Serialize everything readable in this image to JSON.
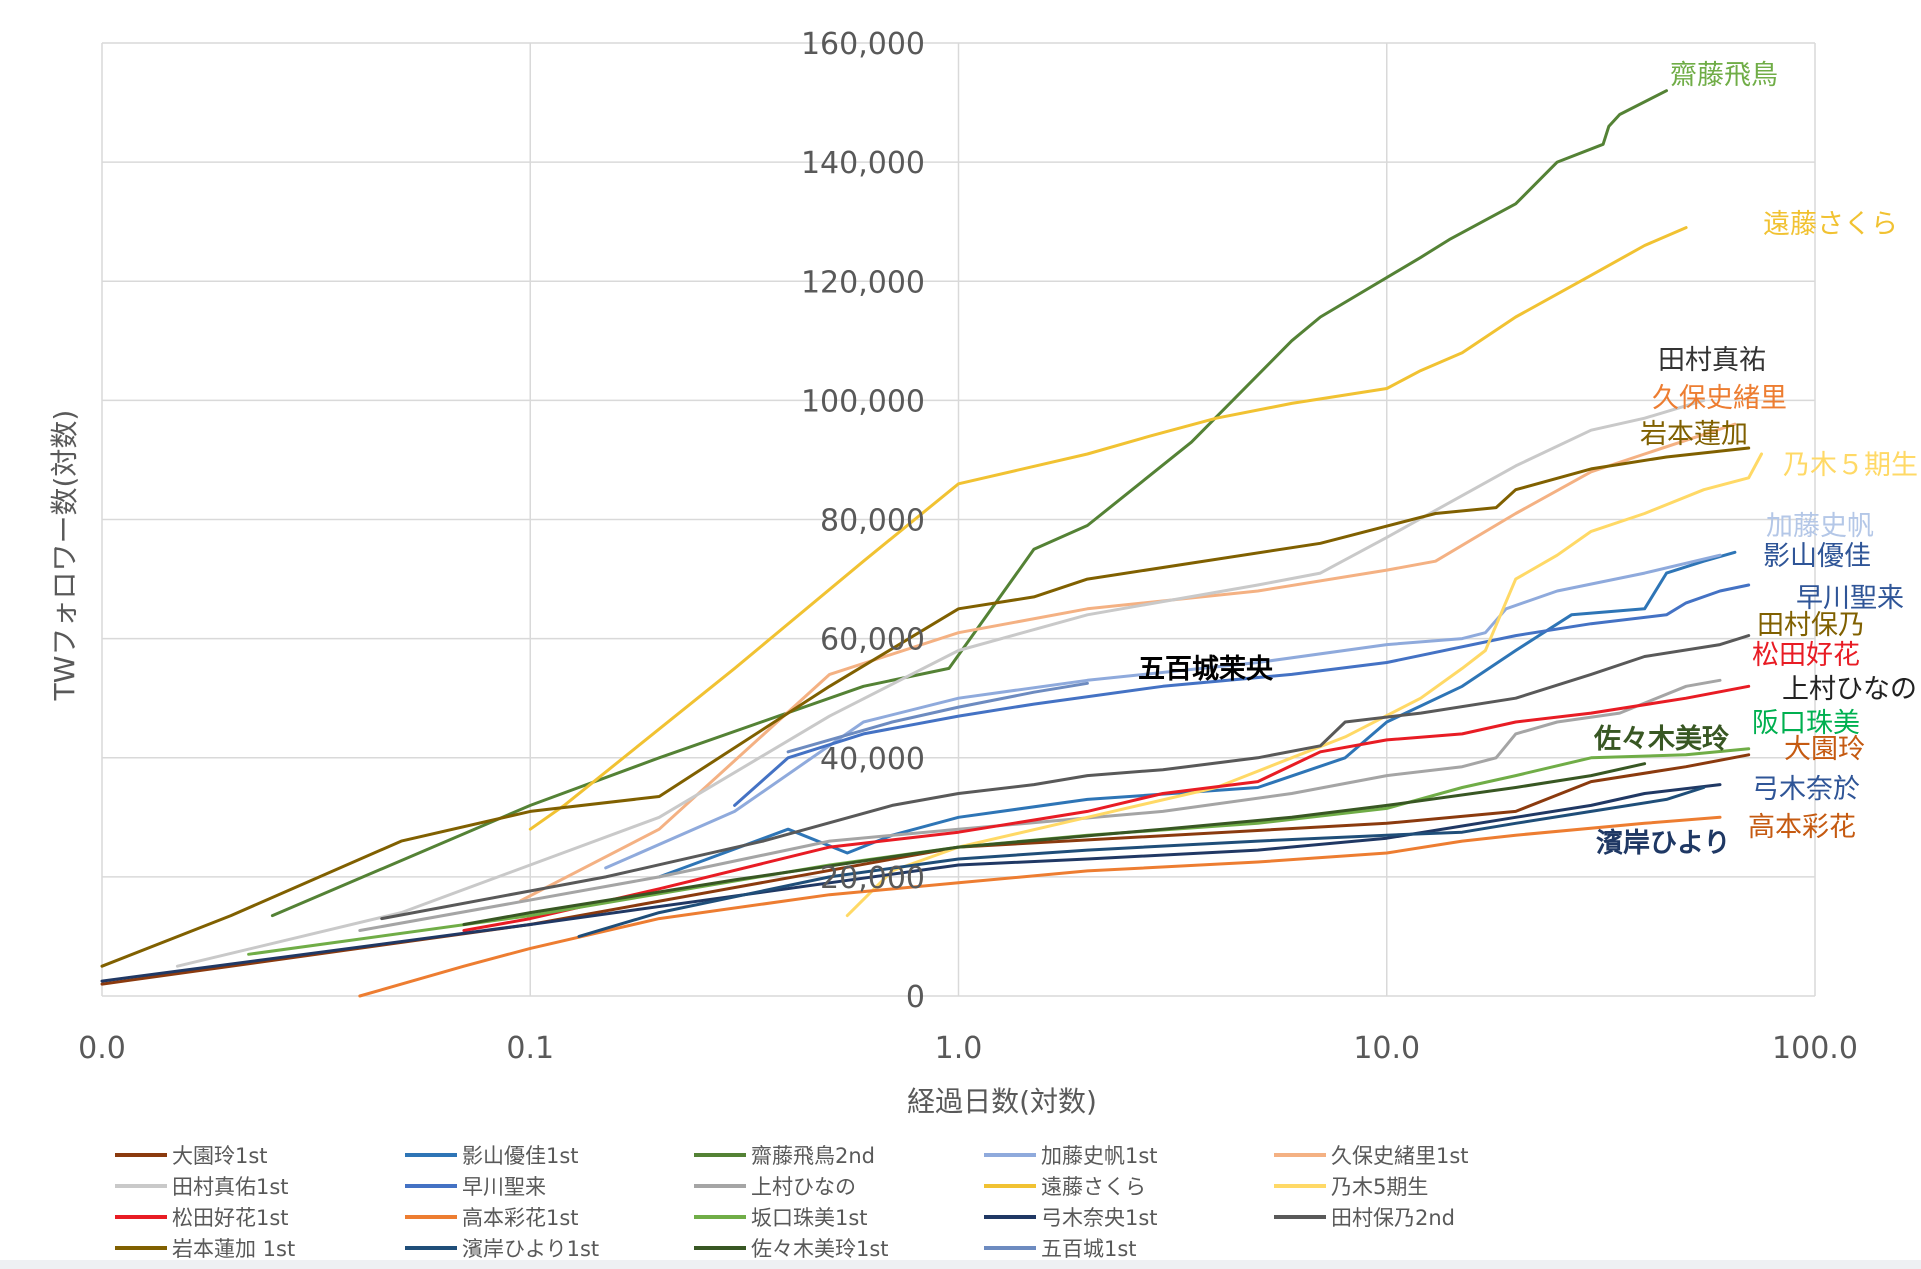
{
  "chart_data": {
    "type": "line",
    "xscale": "log",
    "xlim": [
      0.01,
      100
    ],
    "ylim": [
      0,
      160000
    ],
    "xlabel": "経過日数(対数)",
    "ylabel": "TWフォロワー数(対数)",
    "x_ticks": [
      {
        "value": 0.01,
        "label": "0.0"
      },
      {
        "value": 0.1,
        "label": "0.1"
      },
      {
        "value": 1,
        "label": "1.0"
      },
      {
        "value": 10,
        "label": "10.0"
      },
      {
        "value": 100,
        "label": "100.0"
      }
    ],
    "y_ticks": [
      {
        "value": 0,
        "label": "0"
      },
      {
        "value": 20000,
        "label": "20,000"
      },
      {
        "value": 40000,
        "label": "40,000"
      },
      {
        "value": 60000,
        "label": "60,000"
      },
      {
        "value": 80000,
        "label": "80,000"
      },
      {
        "value": 100000,
        "label": "100,000"
      },
      {
        "value": 120000,
        "label": "120,000"
      },
      {
        "value": 140000,
        "label": "140,000"
      },
      {
        "value": 160000,
        "label": "160,000"
      }
    ],
    "series": [
      {
        "name": "大園玲1st",
        "color": "#8B3A0E",
        "points": [
          [
            0.01,
            2000
          ],
          [
            0.1,
            12000
          ],
          [
            1,
            25000
          ],
          [
            10,
            29000
          ],
          [
            20,
            31000
          ],
          [
            30,
            36000
          ],
          [
            50,
            38500
          ],
          [
            70,
            40500
          ]
        ]
      },
      {
        "name": "影山優佳1st",
        "color": "#2E75B6",
        "points": [
          [
            0.2,
            20000
          ],
          [
            0.4,
            28000
          ],
          [
            0.55,
            24000
          ],
          [
            0.7,
            27000
          ],
          [
            1,
            30000
          ],
          [
            2,
            33000
          ],
          [
            5,
            35000
          ],
          [
            8,
            40000
          ],
          [
            10,
            46000
          ],
          [
            15,
            52000
          ],
          [
            20,
            58000
          ],
          [
            27,
            64000
          ],
          [
            40,
            65000
          ],
          [
            45,
            71000
          ],
          [
            55,
            73000
          ],
          [
            65,
            74500
          ]
        ]
      },
      {
        "name": "齋藤飛鳥2nd",
        "color": "#548235",
        "points": [
          [
            0.025,
            13500
          ],
          [
            0.1,
            32000
          ],
          [
            0.2,
            40000
          ],
          [
            0.6,
            52000
          ],
          [
            0.95,
            55000
          ],
          [
            1.5,
            75000
          ],
          [
            2,
            79000
          ],
          [
            3.5,
            93000
          ],
          [
            6,
            110000
          ],
          [
            7,
            114000
          ],
          [
            12,
            124000
          ],
          [
            14,
            127000
          ],
          [
            20,
            133000
          ],
          [
            25,
            140000
          ],
          [
            32,
            143000
          ],
          [
            33,
            146000
          ],
          [
            35,
            148000
          ],
          [
            45,
            152000
          ]
        ]
      },
      {
        "name": "加藤史帆1st",
        "color": "#8FAADC",
        "points": [
          [
            0.15,
            21500
          ],
          [
            0.3,
            31000
          ],
          [
            0.6,
            46000
          ],
          [
            1,
            50000
          ],
          [
            2,
            53000
          ],
          [
            5,
            56000
          ],
          [
            10,
            59000
          ],
          [
            15,
            60000
          ],
          [
            17,
            61000
          ],
          [
            19,
            65000
          ],
          [
            25,
            68000
          ],
          [
            40,
            71000
          ],
          [
            60,
            74000
          ]
        ]
      },
      {
        "name": "久保史緒里1st",
        "color": "#F4B183",
        "points": [
          [
            0.095,
            16000
          ],
          [
            0.2,
            28000
          ],
          [
            0.5,
            54000
          ],
          [
            1,
            61000
          ],
          [
            2,
            65000
          ],
          [
            5,
            68000
          ],
          [
            10,
            71500
          ],
          [
            13,
            73000
          ],
          [
            20,
            81000
          ],
          [
            30,
            88000
          ],
          [
            40,
            91000
          ],
          [
            65,
            96000
          ]
        ]
      },
      {
        "name": "田村真佑1st",
        "color": "#C9C9C9",
        "points": [
          [
            0.015,
            5000
          ],
          [
            0.05,
            14000
          ],
          [
            0.2,
            30000
          ],
          [
            0.5,
            47000
          ],
          [
            1,
            58000
          ],
          [
            2,
            64000
          ],
          [
            5,
            69000
          ],
          [
            7,
            71000
          ],
          [
            10,
            77000
          ],
          [
            20,
            89000
          ],
          [
            30,
            95000
          ],
          [
            40,
            97000
          ],
          [
            55,
            100000
          ]
        ]
      },
      {
        "name": "早川聖来",
        "color": "#4472C4",
        "points": [
          [
            0.3,
            32000
          ],
          [
            0.4,
            40000
          ],
          [
            0.6,
            44000
          ],
          [
            1,
            47000
          ],
          [
            1.5,
            49000
          ],
          [
            3,
            52000
          ],
          [
            6,
            54000
          ],
          [
            10,
            56000
          ],
          [
            20,
            60500
          ],
          [
            30,
            62500
          ],
          [
            45,
            64000
          ],
          [
            50,
            66000
          ],
          [
            60,
            68000
          ],
          [
            70,
            69000
          ]
        ]
      },
      {
        "name": "上村ひなの",
        "color": "#A5A5A5",
        "points": [
          [
            0.04,
            11000
          ],
          [
            0.2,
            20000
          ],
          [
            0.5,
            26000
          ],
          [
            1,
            28000
          ],
          [
            3,
            31000
          ],
          [
            6,
            34000
          ],
          [
            10,
            37000
          ],
          [
            15,
            38500
          ],
          [
            18,
            40000
          ],
          [
            20,
            44000
          ],
          [
            25,
            46000
          ],
          [
            35,
            47500
          ],
          [
            50,
            52000
          ],
          [
            60,
            53000
          ]
        ]
      },
      {
        "name": "遠藤さくら",
        "color": "#F1C232",
        "points": [
          [
            0.1,
            28000
          ],
          [
            0.12,
            32000
          ],
          [
            0.3,
            55000
          ],
          [
            0.6,
            73000
          ],
          [
            1,
            86000
          ],
          [
            2,
            91000
          ],
          [
            2.8,
            94000
          ],
          [
            4,
            97000
          ],
          [
            6,
            99500
          ],
          [
            10,
            102000
          ],
          [
            12,
            105000
          ],
          [
            15,
            108000
          ],
          [
            20,
            114000
          ],
          [
            30,
            121000
          ],
          [
            40,
            126000
          ],
          [
            50,
            129000
          ]
        ]
      },
      {
        "name": "乃木5期生",
        "color": "#FFD966",
        "points": [
          [
            0.55,
            13500
          ],
          [
            0.7,
            21000
          ],
          [
            1,
            25000
          ],
          [
            2,
            30000
          ],
          [
            4,
            35000
          ],
          [
            6,
            40000
          ],
          [
            8,
            43500
          ],
          [
            12,
            50000
          ],
          [
            15,
            55000
          ],
          [
            17,
            58000
          ],
          [
            20,
            70000
          ],
          [
            25,
            74000
          ],
          [
            30,
            78000
          ],
          [
            40,
            81000
          ],
          [
            55,
            85000
          ],
          [
            70,
            87000
          ],
          [
            75,
            91000
          ]
        ]
      },
      {
        "name": "松田好花1st",
        "color": "#E81C24",
        "points": [
          [
            0.07,
            11000
          ],
          [
            0.1,
            13000
          ],
          [
            0.2,
            18000
          ],
          [
            0.5,
            25000
          ],
          [
            1,
            27500
          ],
          [
            2,
            31000
          ],
          [
            3,
            34000
          ],
          [
            5,
            36000
          ],
          [
            7,
            41000
          ],
          [
            10,
            43000
          ],
          [
            15,
            44000
          ],
          [
            20,
            46000
          ],
          [
            30,
            47500
          ],
          [
            50,
            50000
          ],
          [
            70,
            52000
          ]
        ]
      },
      {
        "name": "高本彩花1st",
        "color": "#ED7D31",
        "points": [
          [
            0.04,
            0
          ],
          [
            0.07,
            5000
          ],
          [
            0.1,
            8000
          ],
          [
            0.2,
            13000
          ],
          [
            0.5,
            17000
          ],
          [
            1,
            19000
          ],
          [
            2,
            21000
          ],
          [
            5,
            22500
          ],
          [
            10,
            24000
          ],
          [
            15,
            26000
          ],
          [
            20,
            27000
          ],
          [
            40,
            29000
          ],
          [
            60,
            30000
          ]
        ]
      },
      {
        "name": "坂口珠美1st",
        "color": "#70AD47",
        "points": [
          [
            0.022,
            7000
          ],
          [
            0.1,
            13500
          ],
          [
            0.5,
            22000
          ],
          [
            1,
            25000
          ],
          [
            2,
            27000
          ],
          [
            5,
            29000
          ],
          [
            10,
            31500
          ],
          [
            15,
            35000
          ],
          [
            20,
            37000
          ],
          [
            30,
            40000
          ],
          [
            50,
            40500
          ],
          [
            70,
            41500
          ]
        ]
      },
      {
        "name": "弓木奈央1st",
        "color": "#203864",
        "points": [
          [
            0.01,
            2500
          ],
          [
            0.1,
            12000
          ],
          [
            0.5,
            19000
          ],
          [
            1,
            22000
          ],
          [
            2,
            23000
          ],
          [
            5,
            24500
          ],
          [
            10,
            26500
          ],
          [
            20,
            30000
          ],
          [
            30,
            32000
          ],
          [
            40,
            34000
          ],
          [
            60,
            35500
          ]
        ]
      },
      {
        "name": "田村保乃2nd",
        "color": "#595959",
        "points": [
          [
            0.045,
            13000
          ],
          [
            0.15,
            20000
          ],
          [
            0.35,
            26000
          ],
          [
            0.7,
            32000
          ],
          [
            1,
            34000
          ],
          [
            1.5,
            35500
          ],
          [
            2,
            37000
          ],
          [
            3,
            38000
          ],
          [
            5,
            40000
          ],
          [
            7,
            42000
          ],
          [
            8,
            46000
          ],
          [
            12,
            47500
          ],
          [
            20,
            50000
          ],
          [
            30,
            54000
          ],
          [
            40,
            57000
          ],
          [
            60,
            59000
          ],
          [
            70,
            60500
          ]
        ]
      },
      {
        "name": "岩本蓮加 1st",
        "color": "#806000",
        "points": [
          [
            0.01,
            5000
          ],
          [
            0.02,
            13500
          ],
          [
            0.05,
            26000
          ],
          [
            0.1,
            31000
          ],
          [
            0.2,
            33500
          ],
          [
            0.5,
            52000
          ],
          [
            1,
            65000
          ],
          [
            1.5,
            67000
          ],
          [
            2,
            70000
          ],
          [
            7,
            76000
          ],
          [
            13,
            81000
          ],
          [
            18,
            82000
          ],
          [
            20,
            85000
          ],
          [
            30,
            88500
          ],
          [
            45,
            90500
          ],
          [
            70,
            92000
          ]
        ]
      },
      {
        "name": "濱岸ひより1st",
        "color": "#1F4E79",
        "points": [
          [
            0.13,
            10000
          ],
          [
            0.2,
            14000
          ],
          [
            0.5,
            20000
          ],
          [
            1,
            23000
          ],
          [
            2,
            24500
          ],
          [
            5,
            26000
          ],
          [
            10,
            27000
          ],
          [
            15,
            27500
          ],
          [
            20,
            29000
          ],
          [
            30,
            31000
          ],
          [
            45,
            33000
          ],
          [
            55,
            35000
          ]
        ]
      },
      {
        "name": "佐々木美玲1st",
        "color": "#385723",
        "points": [
          [
            0.07,
            12000
          ],
          [
            0.1,
            14000
          ],
          [
            0.3,
            19500
          ],
          [
            1,
            25000
          ],
          [
            3,
            28000
          ],
          [
            6,
            30000
          ],
          [
            10,
            32000
          ],
          [
            20,
            35000
          ],
          [
            30,
            37000
          ],
          [
            40,
            39000
          ]
        ]
      },
      {
        "name": "五百城1st",
        "color": "#6D8BC0",
        "points": [
          [
            0.4,
            41000
          ],
          [
            0.7,
            46000
          ],
          [
            1,
            48500
          ],
          [
            1.5,
            51000
          ],
          [
            2,
            52500
          ]
        ]
      }
    ],
    "annotations": [
      {
        "text": "齋藤飛鳥",
        "color": "#70AD47",
        "bold": false
      },
      {
        "text": "遠藤さくら",
        "color": "#F1C232",
        "bold": false
      },
      {
        "text": "田村真祐",
        "color": "#333333",
        "bold": false
      },
      {
        "text": "久保史緒里",
        "color": "#ED7D31",
        "bold": false
      },
      {
        "text": "岩本蓮加",
        "color": "#806000",
        "bold": false
      },
      {
        "text": "乃木５期生",
        "color": "#FFD966",
        "bold": false
      },
      {
        "text": "加藤史帆",
        "color": "#B4C7E7",
        "bold": false
      },
      {
        "text": "影山優佳",
        "color": "#2F5597",
        "bold": false
      },
      {
        "text": "早川聖来",
        "color": "#2F5597",
        "bold": false
      },
      {
        "text": "田村保乃",
        "color": "#806000",
        "bold": false
      },
      {
        "text": "松田好花",
        "color": "#E81C24",
        "bold": false
      },
      {
        "text": "上村ひなの",
        "color": "#222222",
        "bold": false
      },
      {
        "text": "阪口珠美",
        "color": "#00B050",
        "bold": false
      },
      {
        "text": "大園玲",
        "color": "#C55A11",
        "bold": false
      },
      {
        "text": "弓木奈於",
        "color": "#2F5597",
        "bold": false
      },
      {
        "text": "高本彩花",
        "color": "#C55A11",
        "bold": false
      },
      {
        "text": "佐々木美玲",
        "color": "#385723",
        "bold": true
      },
      {
        "text": "濱岸ひより",
        "color": "#1F3864",
        "bold": true
      },
      {
        "text": "五百城茉央",
        "color": "#000000",
        "bold": true
      }
    ]
  }
}
